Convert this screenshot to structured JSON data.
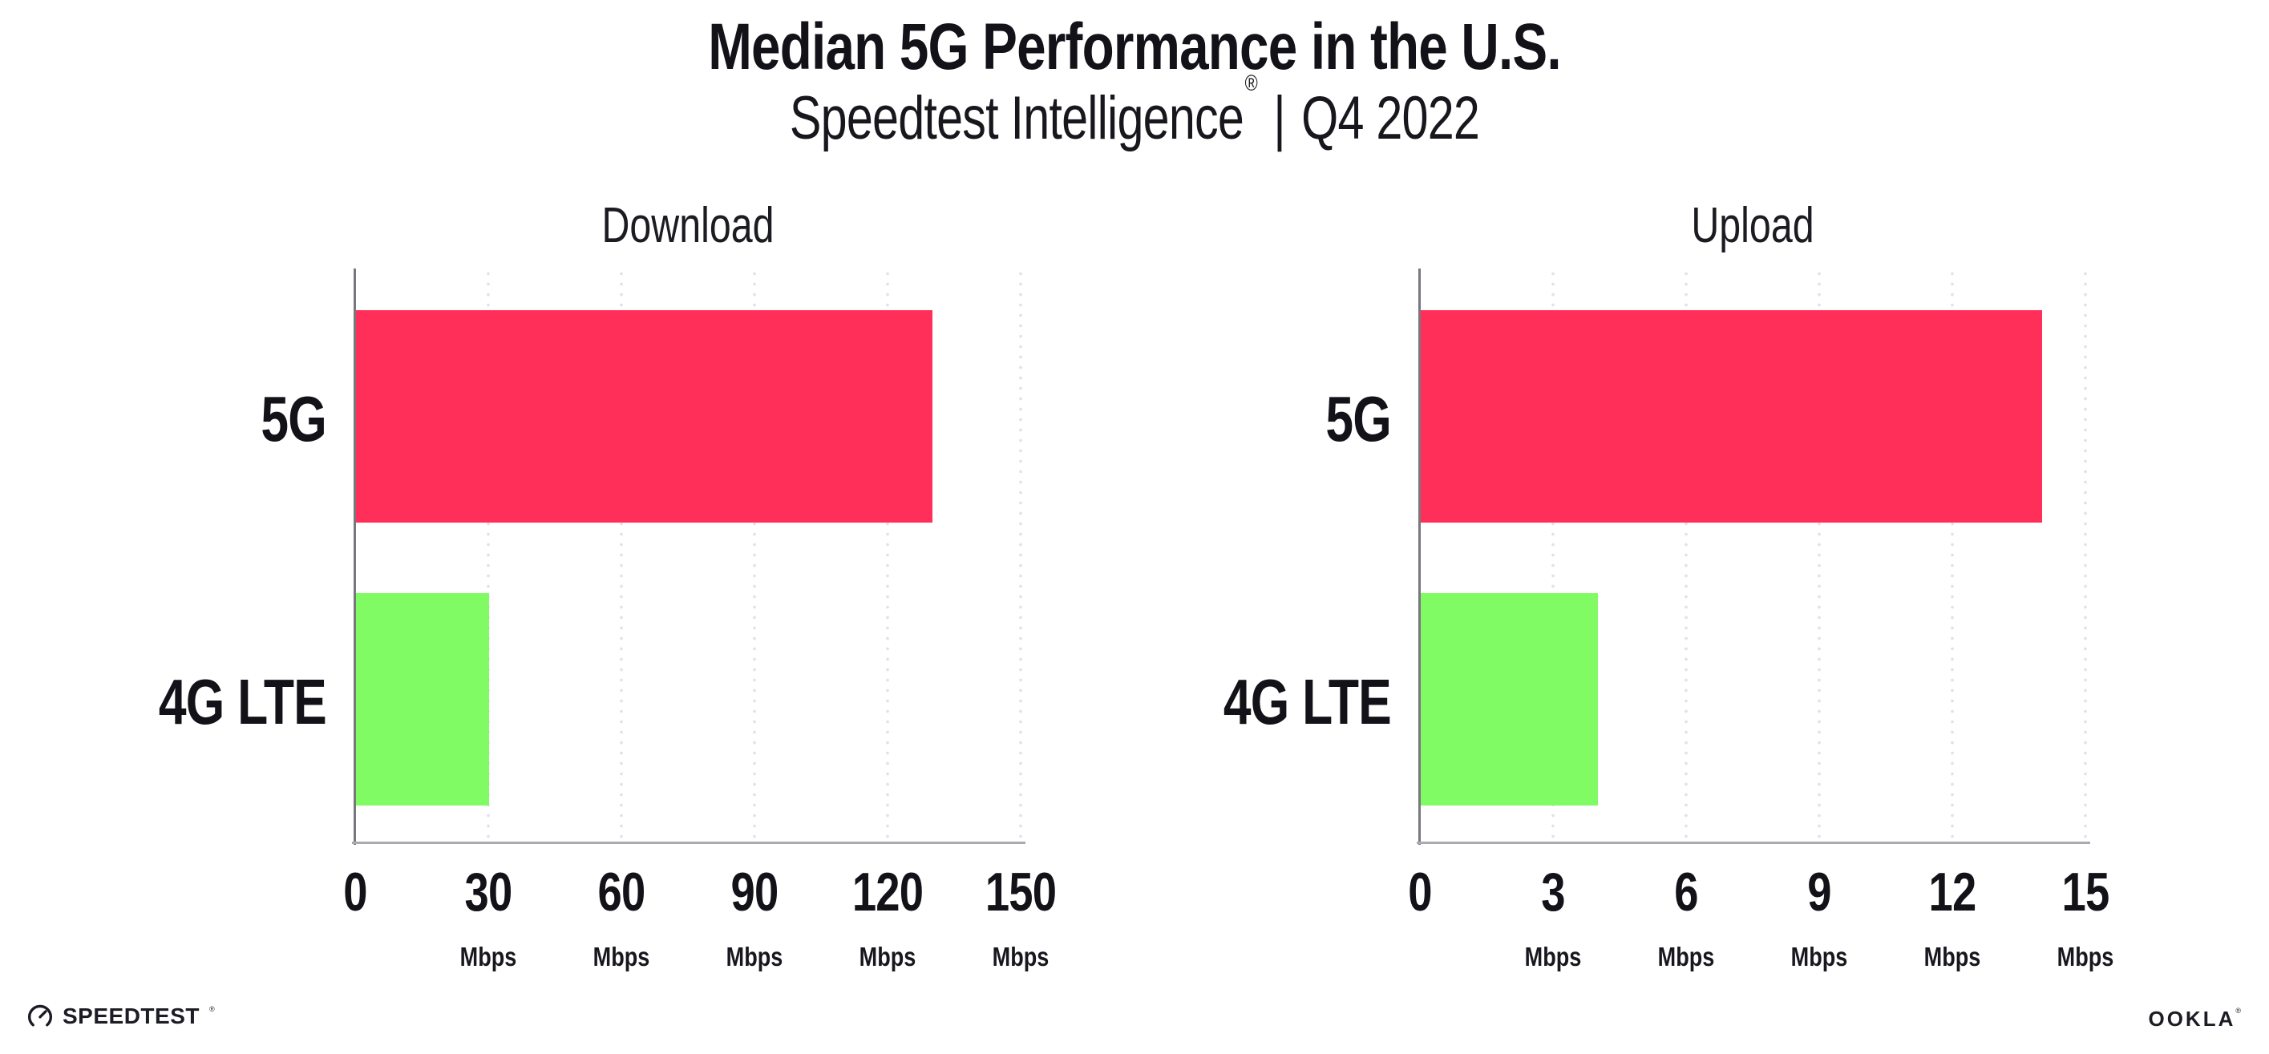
{
  "page": {
    "title": "Median 5G Performance in the U.S.",
    "subtitle_brand": "Speedtest Intelligence",
    "subtitle_reg_mark": "®",
    "subtitle_separator": "|",
    "subtitle_period": "Q4 2022"
  },
  "chart_data": [
    {
      "type": "bar",
      "orientation": "horizontal",
      "title": "Download",
      "categories": [
        "5G",
        "4G LTE"
      ],
      "values": [
        130,
        30
      ],
      "unit": "Mbps",
      "bar_colors": [
        "#FF2F5A",
        "#81FB63"
      ],
      "xlim": [
        0,
        150
      ],
      "xticks": [
        0,
        30,
        60,
        90,
        120,
        150
      ],
      "grid": "vertical-dotted",
      "legend": "none"
    },
    {
      "type": "bar",
      "orientation": "horizontal",
      "title": "Upload",
      "categories": [
        "5G",
        "4G LTE"
      ],
      "values": [
        14,
        4
      ],
      "unit": "Mbps",
      "bar_colors": [
        "#FF2F5A",
        "#81FB63"
      ],
      "xlim": [
        0,
        15
      ],
      "xticks": [
        0,
        3,
        6,
        9,
        12,
        15
      ],
      "grid": "vertical-dotted",
      "legend": "none"
    }
  ],
  "colors": {
    "bar_5g": "#FF2F5A",
    "bar_4g_lte": "#81FB63",
    "axis_y": "#77777e",
    "axis_x": "#aaaab0",
    "gridline": "#e1e1ea",
    "text": "#121218"
  },
  "footer": {
    "speedtest_logo_text": "SPEEDTEST",
    "speedtest_trademark": "®",
    "ookla_logo_text": "OOKLA",
    "ookla_trademark": "®"
  }
}
